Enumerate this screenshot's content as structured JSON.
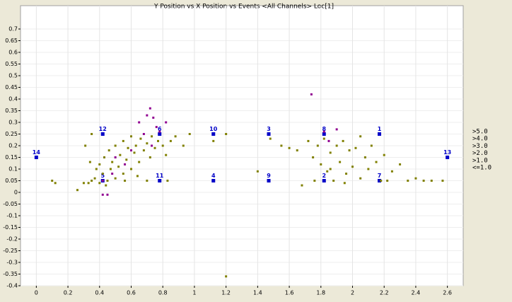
{
  "chart_data": {
    "type": "scatter",
    "title": "Y Position vs X Position vs Events <All Channels> Loc[1]",
    "xlim": [
      -0.1,
      2.7
    ],
    "ylim": [
      -0.4,
      0.8
    ],
    "xticks": [
      0,
      0.2,
      0.4,
      0.6,
      0.8,
      1,
      1.2,
      1.4,
      1.6,
      1.8,
      2,
      2.2,
      2.4,
      2.6
    ],
    "yticks": [
      -0.4,
      -0.35,
      -0.3,
      -0.25,
      -0.2,
      -0.15,
      -0.1,
      -0.05,
      0,
      0.05,
      0.1,
      0.15,
      0.2,
      0.25,
      0.3,
      0.35,
      0.4,
      0.45,
      0.5,
      0.55,
      0.6,
      0.65,
      0.7
    ],
    "grid": true,
    "series": [
      {
        "color": "#0000c8",
        "marker": "square",
        "x": [
          0,
          0.42,
          0.42,
          0.78,
          0.78,
          1.12,
          1.12,
          1.47,
          1.47,
          1.82,
          1.82,
          2.17,
          2.17,
          2.6
        ],
        "y": [
          0.15,
          0.25,
          0.05,
          0.25,
          0.05,
          0.25,
          0.05,
          0.25,
          0.05,
          0.25,
          0.05,
          0.25,
          0.05,
          0.15
        ],
        "labels": [
          "14",
          "12",
          "5",
          "6",
          "11",
          "10",
          "4",
          "3",
          "9",
          "8",
          "2",
          "1",
          "7",
          "13"
        ]
      },
      {
        "name": ">5.0",
        "color": "#ff0000",
        "x": [],
        "y": []
      },
      {
        "name": ">4.0",
        "color": "#00a000",
        "x": [],
        "y": []
      },
      {
        "name": ">3.0",
        "color": "#0000ff",
        "x": [],
        "y": []
      },
      {
        "name": ">2.0",
        "color": "#00b4b4",
        "x": [],
        "y": []
      },
      {
        "name": ">1.0",
        "color": "#900090",
        "x": [
          0.42,
          0.45,
          0.5,
          0.56,
          0.65,
          0.68,
          0.7,
          0.72,
          0.74,
          0.76,
          0.78,
          0.73,
          0.82,
          0.42,
          1.74,
          1.82,
          1.9,
          1.85,
          0.48,
          0.6
        ],
        "y": [
          -0.01,
          -0.01,
          0.15,
          0.12,
          0.3,
          0.25,
          0.33,
          0.36,
          0.32,
          0.28,
          0.26,
          0.2,
          0.3,
          0.05,
          0.42,
          0.26,
          0.27,
          0.22,
          0.08,
          0.18
        ]
      },
      {
        "name": "<=1.0",
        "color": "#808000",
        "x": [
          0.1,
          0.12,
          0.26,
          0.3,
          0.33,
          0.35,
          0.37,
          0.38,
          0.4,
          0.42,
          0.43,
          0.45,
          0.46,
          0.47,
          0.48,
          0.5,
          0.5,
          0.52,
          0.53,
          0.55,
          0.55,
          0.57,
          0.58,
          0.6,
          0.6,
          0.62,
          0.63,
          0.65,
          0.66,
          0.68,
          0.7,
          0.72,
          0.73,
          0.75,
          0.77,
          0.8,
          0.82,
          0.85,
          0.88,
          0.93,
          0.97,
          0.35,
          0.31,
          0.34,
          0.4,
          0.44,
          0.56,
          0.64,
          0.7,
          0.83,
          1.12,
          1.2,
          1.4,
          1.48,
          1.55,
          1.6,
          1.2,
          1.65,
          1.68,
          1.72,
          1.75,
          1.78,
          1.8,
          1.82,
          1.84,
          1.86,
          1.88,
          1.9,
          1.92,
          1.94,
          1.96,
          1.98,
          2.0,
          2.02,
          2.05,
          2.08,
          2.1,
          2.12,
          2.15,
          2.18,
          2.2,
          2.25,
          2.3,
          2.22,
          2.35,
          2.4,
          2.45,
          2.5,
          2.57,
          1.76,
          1.95,
          2.05,
          1.86
        ],
        "y": [
          0.05,
          0.04,
          0.01,
          0.04,
          0.04,
          0.05,
          0.06,
          0.1,
          0.12,
          0.08,
          0.15,
          0.05,
          0.18,
          0.1,
          0.13,
          0.06,
          0.2,
          0.11,
          0.16,
          0.08,
          0.22,
          0.14,
          0.19,
          0.1,
          0.24,
          0.17,
          0.2,
          0.13,
          0.23,
          0.18,
          0.21,
          0.15,
          0.24,
          0.19,
          0.22,
          0.2,
          0.16,
          0.22,
          0.24,
          0.2,
          0.25,
          0.25,
          0.2,
          0.13,
          0.04,
          0.03,
          0.05,
          0.07,
          0.05,
          0.05,
          0.22,
          0.25,
          0.09,
          0.23,
          0.2,
          0.19,
          -0.36,
          0.18,
          0.03,
          0.22,
          0.15,
          0.2,
          0.12,
          0.23,
          0.09,
          0.17,
          0.05,
          0.2,
          0.13,
          0.22,
          0.08,
          0.18,
          0.11,
          0.19,
          0.06,
          0.15,
          0.1,
          0.2,
          0.13,
          0.05,
          0.16,
          0.09,
          0.12,
          0.05,
          0.05,
          0.06,
          0.05,
          0.05,
          0.05,
          0.05,
          0.04,
          0.24,
          0.1
        ]
      }
    ]
  }
}
